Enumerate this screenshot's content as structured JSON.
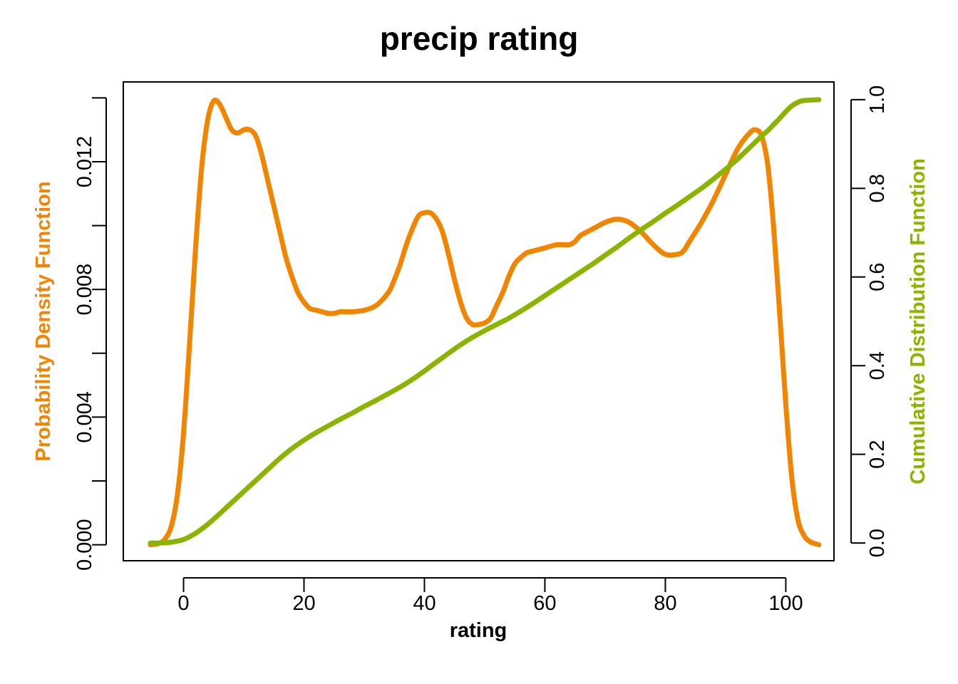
{
  "chart_data": {
    "type": "line",
    "title": "precip rating",
    "xlabel": "rating",
    "ylabel_left": "Probability Density Function",
    "ylabel_right": "Cumulative Distribution Function",
    "xlim": [
      -10,
      108
    ],
    "ylim_left": [
      -0.0005,
      0.0145
    ],
    "ylim_right": [
      -0.04,
      1.04
    ],
    "x_ticks": [
      "0",
      "20",
      "40",
      "60",
      "80",
      "100"
    ],
    "y_left_ticks": [
      "0.000",
      "0.004",
      "0.008",
      "0.012"
    ],
    "y_left_minor_ticks": [
      0.002,
      0.006,
      0.01,
      0.014
    ],
    "y_right_ticks": [
      "0.0",
      "0.2",
      "0.4",
      "0.6",
      "0.8",
      "1.0"
    ],
    "grid": false,
    "series": [
      {
        "name": "Probability Density Function",
        "axis": "left",
        "color": "#F28500",
        "x": [
          -5.5,
          -4,
          -3,
          -2,
          -1,
          0,
          1,
          2,
          3,
          4,
          5,
          6,
          7,
          8,
          9,
          10,
          11,
          12,
          13,
          14,
          15,
          16,
          17,
          18,
          19,
          20,
          21,
          22,
          23,
          24,
          25,
          26,
          27,
          28,
          30,
          32,
          34,
          35,
          36,
          37,
          38,
          39,
          40,
          41,
          42,
          43,
          44,
          45,
          46,
          47,
          48,
          49,
          50,
          51,
          52,
          53,
          54,
          55,
          56,
          57,
          58,
          60,
          62,
          64,
          65,
          66,
          68,
          70,
          72,
          74,
          76,
          78,
          80,
          82,
          83,
          84,
          86,
          88,
          90,
          92,
          94,
          95,
          96,
          97,
          98,
          99,
          100,
          101,
          102,
          103,
          104,
          105.5
        ],
        "y": [
          0.0,
          5e-05,
          0.0002,
          0.0006,
          0.0016,
          0.0035,
          0.0063,
          0.0093,
          0.0118,
          0.0133,
          0.0139,
          0.0138,
          0.0134,
          0.013,
          0.0129,
          0.013,
          0.013,
          0.0128,
          0.0122,
          0.0114,
          0.0106,
          0.0098,
          0.009,
          0.0084,
          0.0079,
          0.0076,
          0.0074,
          0.00735,
          0.0073,
          0.00725,
          0.00725,
          0.0073,
          0.0073,
          0.0073,
          0.00735,
          0.0075,
          0.0079,
          0.0083,
          0.0088,
          0.0094,
          0.0099,
          0.0103,
          0.0104,
          0.0104,
          0.0102,
          0.0098,
          0.0091,
          0.0083,
          0.0076,
          0.0071,
          0.0069,
          0.0069,
          0.00695,
          0.0071,
          0.0075,
          0.0079,
          0.0084,
          0.0088,
          0.009,
          0.00915,
          0.0092,
          0.0093,
          0.0094,
          0.0094,
          0.0095,
          0.0097,
          0.0099,
          0.0101,
          0.0102,
          0.0101,
          0.0098,
          0.0094,
          0.0091,
          0.0091,
          0.0092,
          0.0095,
          0.0101,
          0.0108,
          0.0116,
          0.0124,
          0.0129,
          0.013,
          0.0128,
          0.0119,
          0.0099,
          0.0072,
          0.0044,
          0.0021,
          0.0008,
          0.0003,
          0.0001,
          0.0
        ]
      },
      {
        "name": "Cumulative Distribution Function",
        "axis": "right",
        "color": "#8BB400",
        "x": [
          -5.5,
          -4,
          -2,
          0,
          2,
          4,
          6,
          8,
          10,
          12,
          14,
          16,
          18,
          20,
          22,
          24,
          26,
          28,
          30,
          32,
          34,
          36,
          38,
          40,
          42,
          44,
          46,
          48,
          50,
          52,
          54,
          56,
          58,
          60,
          62,
          64,
          66,
          68,
          70,
          72,
          74,
          76,
          78,
          80,
          82,
          84,
          86,
          88,
          90,
          92,
          94,
          96,
          97,
          98,
          99,
          100,
          101,
          102,
          103,
          105.5
        ],
        "y": [
          0.0,
          0.0,
          0.002,
          0.008,
          0.022,
          0.042,
          0.066,
          0.091,
          0.116,
          0.141,
          0.166,
          0.191,
          0.213,
          0.232,
          0.249,
          0.264,
          0.279,
          0.293,
          0.308,
          0.322,
          0.337,
          0.352,
          0.369,
          0.388,
          0.408,
          0.428,
          0.447,
          0.464,
          0.479,
          0.493,
          0.507,
          0.523,
          0.54,
          0.558,
          0.576,
          0.594,
          0.612,
          0.63,
          0.649,
          0.668,
          0.688,
          0.707,
          0.725,
          0.744,
          0.762,
          0.781,
          0.8,
          0.821,
          0.843,
          0.866,
          0.892,
          0.918,
          0.93,
          0.944,
          0.958,
          0.973,
          0.986,
          0.994,
          0.998,
          1.0
        ]
      }
    ]
  }
}
